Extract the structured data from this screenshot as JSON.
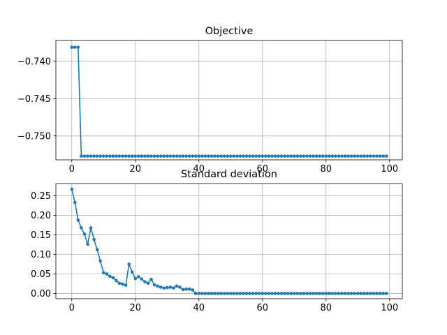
{
  "chart_data": [
    {
      "type": "line",
      "title": "Objective",
      "xlabel": "",
      "ylabel": "",
      "xlim": [
        -5,
        104
      ],
      "ylim": [
        -0.7532,
        -0.7372
      ],
      "xticks": [
        0,
        20,
        40,
        60,
        80,
        100
      ],
      "yticks": [
        -0.74,
        -0.745,
        -0.75
      ],
      "xtick_labels": [
        "0",
        "20",
        "40",
        "60",
        "80",
        "100"
      ],
      "ytick_labels": [
        "−0.740",
        "−0.745",
        "−0.750"
      ],
      "grid": true,
      "color": "#1f77b4",
      "marker": "circle",
      "x": [
        0,
        1,
        2,
        3,
        4,
        5,
        6,
        7,
        8,
        9,
        10,
        11,
        12,
        13,
        14,
        15,
        16,
        17,
        18,
        19,
        20,
        21,
        22,
        23,
        24,
        25,
        26,
        27,
        28,
        29,
        30,
        31,
        32,
        33,
        34,
        35,
        36,
        37,
        38,
        39,
        40,
        41,
        42,
        43,
        44,
        45,
        46,
        47,
        48,
        49,
        50,
        51,
        52,
        53,
        54,
        55,
        56,
        57,
        58,
        59,
        60,
        61,
        62,
        63,
        64,
        65,
        66,
        67,
        68,
        69,
        70,
        71,
        72,
        73,
        74,
        75,
        76,
        77,
        78,
        79,
        80,
        81,
        82,
        83,
        84,
        85,
        86,
        87,
        88,
        89,
        90,
        91,
        92,
        93,
        94,
        95,
        96,
        97,
        98,
        99
      ],
      "y": [
        -0.7381,
        -0.7381,
        -0.7381,
        -0.7527,
        -0.7527,
        -0.7527,
        -0.7527,
        -0.7527,
        -0.7527,
        -0.7527,
        -0.7527,
        -0.7527,
        -0.7527,
        -0.7527,
        -0.7527,
        -0.7527,
        -0.7527,
        -0.7527,
        -0.7527,
        -0.7527,
        -0.7527,
        -0.7527,
        -0.7527,
        -0.7527,
        -0.7527,
        -0.7527,
        -0.7527,
        -0.7527,
        -0.7527,
        -0.7527,
        -0.7527,
        -0.7527,
        -0.7527,
        -0.7527,
        -0.7527,
        -0.7527,
        -0.7527,
        -0.7527,
        -0.7527,
        -0.7527,
        -0.7527,
        -0.7527,
        -0.7527,
        -0.7527,
        -0.7527,
        -0.7527,
        -0.7527,
        -0.7527,
        -0.7527,
        -0.7527,
        -0.7527,
        -0.7527,
        -0.7527,
        -0.7527,
        -0.7527,
        -0.7527,
        -0.7527,
        -0.7527,
        -0.7527,
        -0.7527,
        -0.7527,
        -0.7527,
        -0.7527,
        -0.7527,
        -0.7527,
        -0.7527,
        -0.7527,
        -0.7527,
        -0.7527,
        -0.7527,
        -0.7527,
        -0.7527,
        -0.7527,
        -0.7527,
        -0.7527,
        -0.7527,
        -0.7527,
        -0.7527,
        -0.7527,
        -0.7527,
        -0.7527,
        -0.7527,
        -0.7527,
        -0.7527,
        -0.7527,
        -0.7527,
        -0.7527,
        -0.7527,
        -0.7527,
        -0.7527,
        -0.7527,
        -0.7527,
        -0.7527,
        -0.7527,
        -0.7527,
        -0.7527,
        -0.7527,
        -0.7527,
        -0.7527,
        -0.7527
      ]
    },
    {
      "type": "line",
      "title": "Standard deviation",
      "xlabel": "",
      "ylabel": "",
      "xlim": [
        -5,
        104
      ],
      "ylim": [
        -0.0135,
        0.2815
      ],
      "xticks": [
        0,
        20,
        40,
        60,
        80,
        100
      ],
      "yticks": [
        0.0,
        0.05,
        0.1,
        0.15,
        0.2,
        0.25
      ],
      "xtick_labels": [
        "0",
        "20",
        "40",
        "60",
        "80",
        "100"
      ],
      "ytick_labels": [
        "0.00",
        "0.05",
        "0.10",
        "0.15",
        "0.20",
        "0.25"
      ],
      "grid": true,
      "color": "#1f77b4",
      "marker": "circle",
      "x": [
        0,
        1,
        2,
        3,
        4,
        5,
        6,
        7,
        8,
        9,
        10,
        11,
        12,
        13,
        14,
        15,
        16,
        17,
        18,
        19,
        20,
        21,
        22,
        23,
        24,
        25,
        26,
        27,
        28,
        29,
        30,
        31,
        32,
        33,
        34,
        35,
        36,
        37,
        38,
        39,
        40,
        41,
        42,
        43,
        44,
        45,
        46,
        47,
        48,
        49,
        50,
        51,
        52,
        53,
        54,
        55,
        56,
        57,
        58,
        59,
        60,
        61,
        62,
        63,
        64,
        65,
        66,
        67,
        68,
        69,
        70,
        71,
        72,
        73,
        74,
        75,
        76,
        77,
        78,
        79,
        80,
        81,
        82,
        83,
        84,
        85,
        86,
        87,
        88,
        89,
        90,
        91,
        92,
        93,
        94,
        95,
        96,
        97,
        98,
        99
      ],
      "y": [
        0.267,
        0.233,
        0.188,
        0.168,
        0.152,
        0.126,
        0.168,
        0.138,
        0.112,
        0.083,
        0.053,
        0.05,
        0.044,
        0.04,
        0.033,
        0.026,
        0.024,
        0.021,
        0.075,
        0.055,
        0.038,
        0.043,
        0.037,
        0.03,
        0.026,
        0.036,
        0.022,
        0.019,
        0.016,
        0.014,
        0.015,
        0.016,
        0.014,
        0.019,
        0.016,
        0.01,
        0.011,
        0.011,
        0.009,
        0.0,
        0.0,
        0.0,
        0.0,
        0.0,
        0.0,
        0.0,
        0.0,
        0.0,
        0.0,
        0.0,
        0.0,
        0.0,
        0.0,
        0.0,
        0.0,
        0.0,
        0.0,
        0.0,
        0.0,
        0.0,
        0.0,
        0.0,
        0.0,
        0.0,
        0.0,
        0.0,
        0.0,
        0.0,
        0.0,
        0.0,
        0.0,
        0.0,
        0.0,
        0.0,
        0.0,
        0.0,
        0.0,
        0.0,
        0.0,
        0.0,
        0.0,
        0.0,
        0.0,
        0.0,
        0.0,
        0.0,
        0.0,
        0.0,
        0.0,
        0.0,
        0.0,
        0.0,
        0.0,
        0.0,
        0.0,
        0.0,
        0.0,
        0.0,
        0.0,
        0.0
      ]
    }
  ]
}
